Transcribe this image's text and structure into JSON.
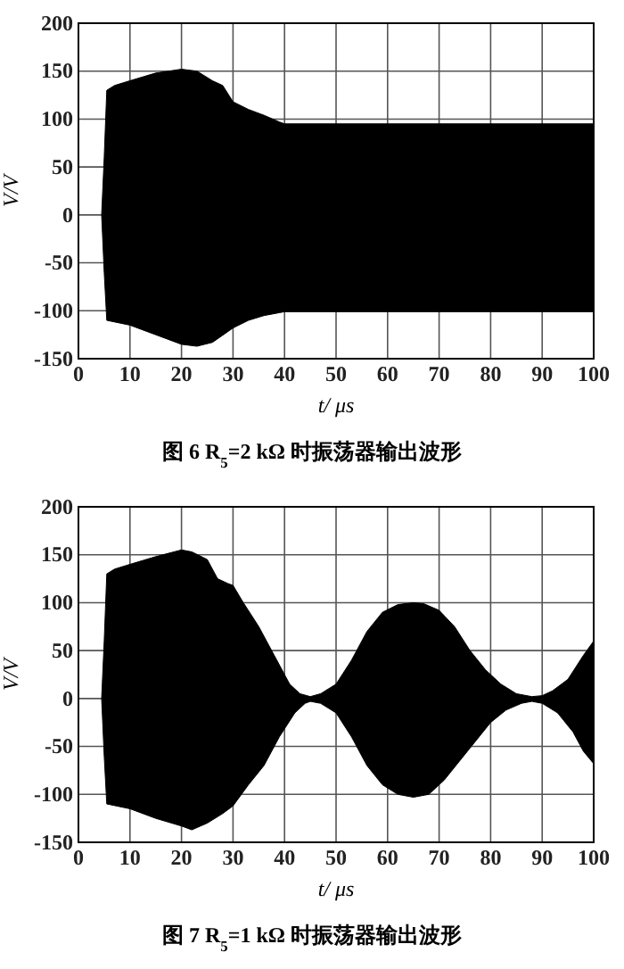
{
  "chart_data": [
    {
      "type": "area",
      "xlabel": "t/ μs",
      "ylabel": "V/V",
      "xlim": [
        0,
        100
      ],
      "ylim": [
        -150,
        200
      ],
      "xticks": [
        0,
        10,
        20,
        30,
        40,
        50,
        60,
        70,
        80,
        90,
        100
      ],
      "yticks": [
        -150,
        -100,
        -50,
        0,
        50,
        100,
        150,
        200
      ],
      "grid": true,
      "annotations": [
        "图 6   R$_{5}$=2 kΩ 时振荡器输出波形"
      ],
      "series": [
        {
          "color": "#000000",
          "x": [
            4.5,
            5,
            5.5,
            7,
            10,
            15,
            20,
            23,
            26,
            28,
            30,
            33,
            36,
            39,
            40,
            100
          ],
          "values": [
            0,
            60,
            130,
            135,
            140,
            148,
            152,
            150,
            140,
            135,
            118,
            110,
            104,
            97,
            95,
            95
          ]
        },
        {
          "color": "#000000",
          "x": [
            4.5,
            5,
            5.5,
            10,
            15,
            20,
            23,
            26,
            30,
            33,
            36,
            39,
            40,
            100
          ],
          "values": [
            0,
            -60,
            -110,
            -115,
            -125,
            -135,
            -137,
            -133,
            -118,
            -110,
            -105,
            -102,
            -101,
            -101
          ]
        }
      ]
    },
    {
      "type": "area",
      "xlabel": "t/ μs",
      "ylabel": "V/V",
      "xlim": [
        0,
        100
      ],
      "ylim": [
        -150,
        200
      ],
      "xticks": [
        0,
        10,
        20,
        30,
        40,
        50,
        60,
        70,
        80,
        90,
        100
      ],
      "yticks": [
        -150,
        -100,
        -50,
        0,
        50,
        100,
        150,
        200
      ],
      "grid": true,
      "annotations": [
        "图 7   R$_{5}$=1 kΩ 时振荡器输出波形"
      ],
      "series": [
        {
          "color": "#000000",
          "x": [
            4.5,
            5,
            5.5,
            7,
            10,
            15,
            20,
            22,
            25,
            27,
            29,
            30,
            32,
            35,
            38,
            41,
            43,
            45,
            47,
            50,
            53,
            56,
            59,
            62,
            65,
            67,
            70,
            73,
            76,
            79,
            82,
            85,
            88,
            90,
            92,
            95,
            98,
            100
          ],
          "values": [
            0,
            60,
            130,
            135,
            140,
            148,
            155,
            153,
            145,
            125,
            120,
            118,
            100,
            75,
            45,
            15,
            5,
            2,
            5,
            15,
            40,
            70,
            90,
            98,
            100,
            99,
            92,
            75,
            50,
            30,
            15,
            5,
            2,
            3,
            8,
            20,
            45,
            60
          ]
        },
        {
          "color": "#000000",
          "x": [
            4.5,
            5,
            5.5,
            10,
            15,
            20,
            22,
            25,
            28,
            30,
            33,
            36,
            39,
            42,
            44,
            45,
            47,
            50,
            53,
            56,
            59,
            62,
            65,
            68,
            71,
            74,
            77,
            80,
            83,
            86,
            88,
            90,
            93,
            96,
            98,
            100
          ],
          "values": [
            0,
            -60,
            -110,
            -115,
            -125,
            -133,
            -137,
            -130,
            -120,
            -112,
            -90,
            -70,
            -40,
            -15,
            -5,
            -3,
            -5,
            -15,
            -40,
            -70,
            -90,
            -100,
            -103,
            -100,
            -85,
            -65,
            -45,
            -25,
            -12,
            -5,
            -3,
            -5,
            -15,
            -35,
            -55,
            -68
          ]
        }
      ]
    }
  ]
}
